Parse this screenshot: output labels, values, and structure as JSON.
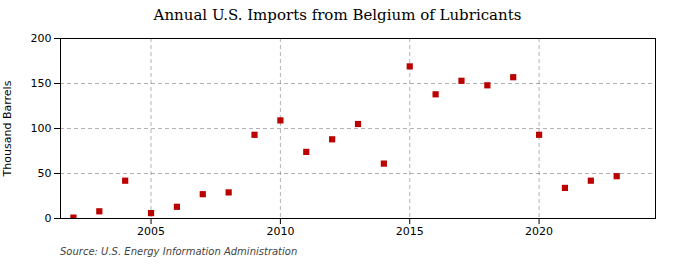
{
  "chart_data": {
    "type": "scatter",
    "title": "Annual U.S. Imports from Belgium of Lubricants",
    "ylabel": "Thousand Barrels",
    "annotation": "Source: U.S. Energy Information Administration",
    "x": [
      2002,
      2003,
      2004,
      2005,
      2006,
      2007,
      2008,
      2009,
      2010,
      2011,
      2012,
      2013,
      2014,
      2015,
      2016,
      2017,
      2018,
      2019,
      2020,
      2021,
      2022,
      2023
    ],
    "values": [
      1,
      8,
      42,
      6,
      13,
      27,
      29,
      93,
      109,
      74,
      88,
      105,
      61,
      169,
      138,
      153,
      148,
      157,
      93,
      34,
      42,
      47
    ],
    "color": "#bb0000",
    "marker": "square",
    "xlim": [
      2001.5,
      2024.5
    ],
    "xticks": [
      2005,
      2010,
      2015,
      2020
    ],
    "ylim": [
      0,
      200
    ],
    "yticks": [
      0,
      50,
      100,
      150,
      200
    ],
    "grid": true
  }
}
